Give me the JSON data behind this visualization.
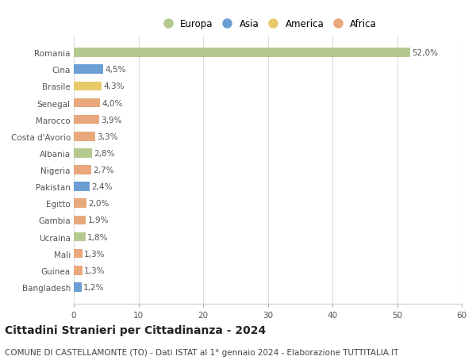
{
  "countries": [
    "Romania",
    "Cina",
    "Brasile",
    "Senegal",
    "Marocco",
    "Costa d'Avorio",
    "Albania",
    "Nigeria",
    "Pakistan",
    "Egitto",
    "Gambia",
    "Ucraina",
    "Mali",
    "Guinea",
    "Bangladesh"
  ],
  "values": [
    52.0,
    4.5,
    4.3,
    4.0,
    3.9,
    3.3,
    2.8,
    2.7,
    2.4,
    2.0,
    1.9,
    1.8,
    1.3,
    1.3,
    1.2
  ],
  "labels": [
    "52,0%",
    "4,5%",
    "4,3%",
    "4,0%",
    "3,9%",
    "3,3%",
    "2,8%",
    "2,7%",
    "2,4%",
    "2,0%",
    "1,9%",
    "1,8%",
    "1,3%",
    "1,3%",
    "1,2%"
  ],
  "colors": [
    "#b5c98e",
    "#6b9fd4",
    "#e8c96a",
    "#e8a87c",
    "#e8a87c",
    "#e8a87c",
    "#b5c98e",
    "#e8a87c",
    "#6b9fd4",
    "#e8a87c",
    "#e8a87c",
    "#b5c98e",
    "#e8a87c",
    "#e8a87c",
    "#6b9fd4"
  ],
  "legend_labels": [
    "Europa",
    "Asia",
    "America",
    "Africa"
  ],
  "legend_colors": [
    "#b5c98e",
    "#6b9fd4",
    "#e8c96a",
    "#e8a87c"
  ],
  "xlim": [
    0,
    60
  ],
  "xticks": [
    0,
    10,
    20,
    30,
    40,
    50,
    60
  ],
  "title": "Cittadini Stranieri per Cittadinanza - 2024",
  "subtitle": "COMUNE DI CASTELLAMONTE (TO) - Dati ISTAT al 1° gennaio 2024 - Elaborazione TUTTITALIA.IT",
  "bg_color": "#ffffff",
  "grid_color": "#dddddd",
  "bar_height": 0.55,
  "title_fontsize": 10,
  "subtitle_fontsize": 7.5,
  "label_fontsize": 7.5,
  "tick_fontsize": 7.5,
  "legend_fontsize": 8.5
}
